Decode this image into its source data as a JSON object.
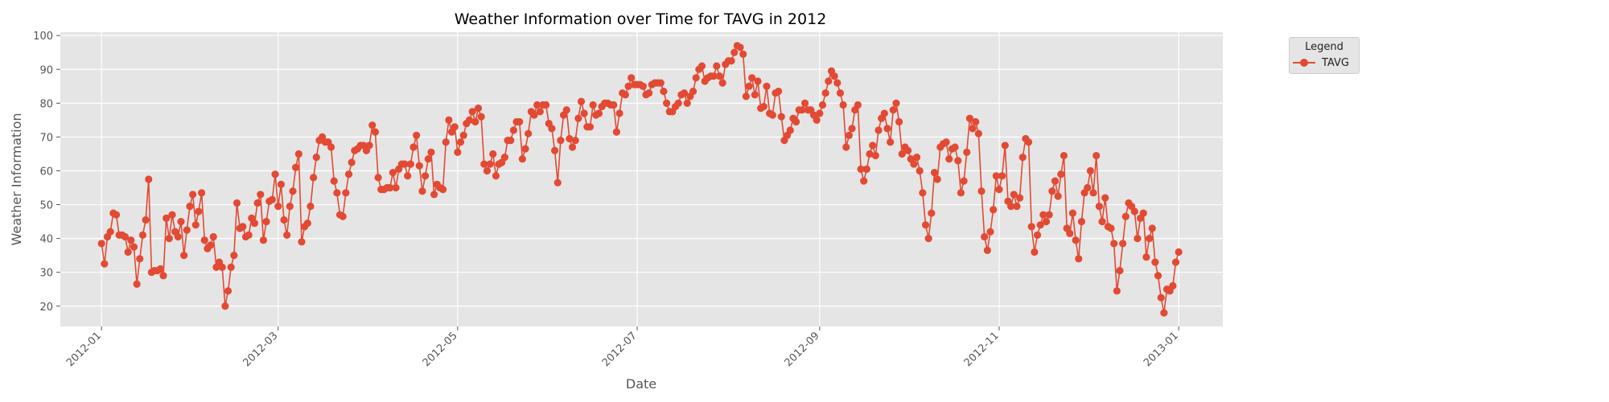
{
  "chart_data": {
    "type": "line",
    "title": "Weather Information over Time for TAVG in 2012",
    "xlabel": "Date",
    "ylabel": "Weather Information",
    "xlim": [
      "2011-12-18",
      "2013-01-16"
    ],
    "ylim": [
      14,
      101
    ],
    "grid": true,
    "yticks": [
      20,
      30,
      40,
      50,
      60,
      70,
      80,
      90,
      100
    ],
    "xticks": [
      "2012-01-01",
      "2012-03-01",
      "2012-05-01",
      "2012-07-01",
      "2012-09-01",
      "2012-11-01",
      "2013-01-01"
    ],
    "xtick_labels": [
      "2012-01",
      "2012-03",
      "2012-05",
      "2012-07",
      "2012-09",
      "2012-11",
      "2013-01"
    ],
    "legend": {
      "title": "Legend",
      "placement": "outside-top-right"
    },
    "series": [
      {
        "name": "TAVG",
        "color": "#E24A33",
        "marker": "circle",
        "x_start": "2012-01-01",
        "x_step_days": 1,
        "values": [
          38.5,
          32.5,
          40.5,
          42,
          47.5,
          47,
          41,
          41,
          40.5,
          36,
          39.5,
          37.5,
          26.5,
          34,
          41,
          45.5,
          57.5,
          30,
          30.5,
          30.5,
          31,
          29,
          46,
          40,
          47,
          42,
          40.5,
          45,
          35,
          42.5,
          49.5,
          53,
          44,
          48,
          53.5,
          39.5,
          37,
          38,
          40.5,
          31.5,
          33,
          31.5,
          20,
          24.5,
          31.5,
          35,
          50.5,
          43,
          43.5,
          40.5,
          41,
          46,
          44.5,
          50.5,
          53,
          39.5,
          45,
          51,
          51.5,
          59,
          49.5,
          56,
          45.5,
          41,
          49.5,
          54,
          61,
          65,
          39,
          43.5,
          44.5,
          49.5,
          58,
          64,
          69,
          70,
          68.5,
          68.5,
          67,
          57,
          53.5,
          47,
          46.5,
          53.5,
          59,
          62.5,
          66,
          66.5,
          67.5,
          67.5,
          66,
          67.5,
          73.5,
          71.5,
          58,
          54.5,
          54.5,
          55,
          55,
          59.5,
          55,
          60.5,
          62,
          62,
          58.5,
          62,
          67,
          70.5,
          61.5,
          54,
          58.5,
          63.5,
          65.5,
          53,
          56,
          55,
          54.5,
          68.5,
          75,
          71.5,
          73,
          65.5,
          68.5,
          70.5,
          74,
          75,
          77.5,
          74.5,
          78.5,
          76,
          62,
          60,
          62,
          65,
          58.5,
          62,
          62.5,
          64,
          69,
          69,
          72,
          74.5,
          74.5,
          63.5,
          66.5,
          71,
          77.5,
          76.5,
          79.5,
          77.5,
          79.5,
          79.5,
          74,
          72.5,
          66,
          56.5,
          69,
          76.5,
          78,
          69.5,
          67,
          69,
          75.5,
          80.5,
          77,
          73,
          73,
          79.5,
          76.5,
          77,
          79,
          80,
          80,
          79.5,
          79.5,
          71.5,
          77,
          83,
          82.5,
          85,
          87.5,
          85.5,
          85.5,
          85.5,
          85,
          82.5,
          83,
          85.5,
          86,
          86,
          86,
          83.5,
          80,
          77.5,
          77.5,
          79,
          80,
          82.5,
          83,
          80,
          82,
          83.5,
          87.5,
          90,
          91,
          86.5,
          87.5,
          88,
          88,
          91,
          88,
          86,
          91.5,
          92.5,
          92.5,
          95,
          97,
          96.5,
          94.5,
          82,
          85,
          87.5,
          82.5,
          86.5,
          78.5,
          79,
          85,
          77,
          76.5,
          83,
          83.5,
          76,
          69,
          70.5,
          72,
          75.5,
          74.5,
          78,
          78,
          80,
          78,
          78,
          76.5,
          75,
          77,
          79.5,
          83,
          86.5,
          89.5,
          88,
          86,
          83,
          79.5,
          67,
          70.5,
          72.5,
          78,
          79.5,
          60.5,
          57,
          60.5,
          65,
          67.5,
          64.5,
          72,
          75.5,
          77,
          72.5,
          68.5,
          78,
          80,
          74.5,
          65,
          67,
          66,
          63.5,
          62,
          64,
          60,
          53.5,
          44,
          40,
          47.5,
          59.5,
          57.5,
          67,
          68,
          68.5,
          63.5,
          66.5,
          67,
          63,
          53.5,
          57,
          65.5,
          75.5,
          72.5,
          74.5,
          71,
          54,
          40.5,
          36.5,
          42,
          48.5,
          58.5,
          54.5,
          58.5,
          67.5,
          51,
          49.5,
          53,
          49.5,
          52,
          64,
          69.5,
          68.5,
          43.5,
          36,
          41,
          44,
          47,
          45,
          47,
          54,
          57,
          52.5,
          59,
          64.5,
          43,
          41.5,
          47.5,
          39.5,
          34,
          45,
          53.5,
          55,
          60,
          53.5,
          64.5,
          49.5,
          45,
          52,
          43.5,
          43,
          38.5,
          24.5,
          30.5,
          38.5,
          46.5,
          50.5,
          49.5,
          48,
          40,
          46,
          47.5,
          34.5,
          40,
          43,
          33,
          29,
          22.5,
          18,
          25,
          24.5,
          26,
          33,
          36
        ]
      }
    ]
  }
}
